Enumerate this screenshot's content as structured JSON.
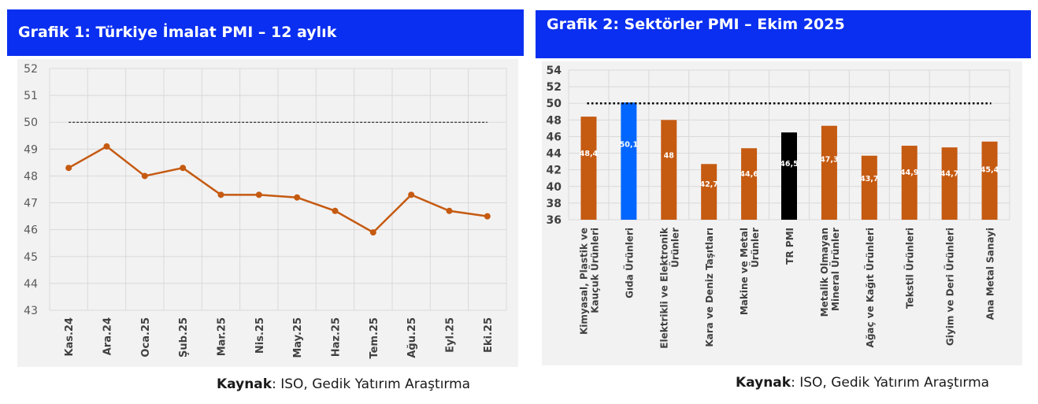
{
  "chart_data": [
    {
      "type": "line",
      "title": "Grafik 1: Türkiye İmalat PMI – 12 aylık",
      "categories": [
        "Kas.24",
        "Ara.24",
        "Oca.25",
        "Şub.25",
        "Mar.25",
        "Nis.25",
        "May.25",
        "Haz.25",
        "Tem.25",
        "Ağu.25",
        "Eyl.25",
        "Eki.25"
      ],
      "series": [
        {
          "values": [
            48.3,
            49.1,
            48.0,
            48.3,
            47.3,
            47.3,
            47.2,
            46.7,
            45.9,
            47.3,
            46.7,
            46.5
          ]
        }
      ],
      "reference_line": 50,
      "ylim": [
        43,
        52
      ],
      "yticks": [
        "43",
        "44",
        "45",
        "46",
        "47",
        "48",
        "49",
        "50",
        "51",
        "52"
      ],
      "grid": true,
      "colors": {
        "line": "#c55a11",
        "reference": "#000000",
        "grid": "#d9d9d9",
        "title_bg": "#0a2ff0"
      }
    },
    {
      "type": "bar",
      "title": "Grafik 2: Sektörler PMI – Ekim 2025",
      "categories": [
        "Kimyasal, Plastik ve Kauçuk Ürünleri",
        "Gıda Ürünleri",
        "Elektrikli ve Elektronik Ürünler",
        "Kara ve Deniz Taşıtları",
        "Makine ve Metal Ürünler",
        "TR PMI",
        "Metalik Olmayan Mineral Ürünler",
        "Ağaç ve Kağıt Ürünleri",
        "Tekstil Ürünleri",
        "Giyim ve Deri Ürünleri",
        "Ana Metal Sanayi"
      ],
      "category_lines": [
        [
          "Kimyasal, Plastik ve",
          "Kauçuk Ürünleri"
        ],
        [
          "Gıda Ürünleri"
        ],
        [
          "Elektrikli ve Elektronik",
          "Ürünler"
        ],
        [
          "Kara ve Deniz Taşıtları"
        ],
        [
          "Makine ve Metal",
          "Ürünler"
        ],
        [
          "TR PMI"
        ],
        [
          "Metalik Olmayan",
          "Mineral Ürünler"
        ],
        [
          "Ağaç ve Kağıt Ürünleri"
        ],
        [
          "Tekstil Ürünleri"
        ],
        [
          "Giyim ve Deri Ürünleri"
        ],
        [
          "Ana Metal Sanayi"
        ]
      ],
      "values": [
        48.4,
        50.1,
        48,
        42.7,
        44.6,
        46.5,
        47.3,
        43.7,
        44.9,
        44.7,
        45.4
      ],
      "data_labels": [
        "48,4",
        "50,1",
        "48",
        "42,7",
        "44,6",
        "46,5",
        "47,3",
        "43,7",
        "44,9",
        "44,7",
        "45,4"
      ],
      "bar_colors": [
        "#c55a11",
        "#0066ff",
        "#c55a11",
        "#c55a11",
        "#c55a11",
        "#000000",
        "#c55a11",
        "#c55a11",
        "#c55a11",
        "#c55a11",
        "#c55a11"
      ],
      "reference_line": 50,
      "ylim": [
        36,
        54
      ],
      "yticks": [
        "36",
        "38",
        "40",
        "42",
        "44",
        "46",
        "48",
        "50",
        "52",
        "54"
      ],
      "grid": true
    }
  ],
  "sources": [
    {
      "label": "Kaynak",
      "text": ": ISO, Gedik Yatırım Araştırma"
    },
    {
      "label": "Kaynak",
      "text": ": ISO, Gedik Yatırım Araştırma"
    }
  ]
}
